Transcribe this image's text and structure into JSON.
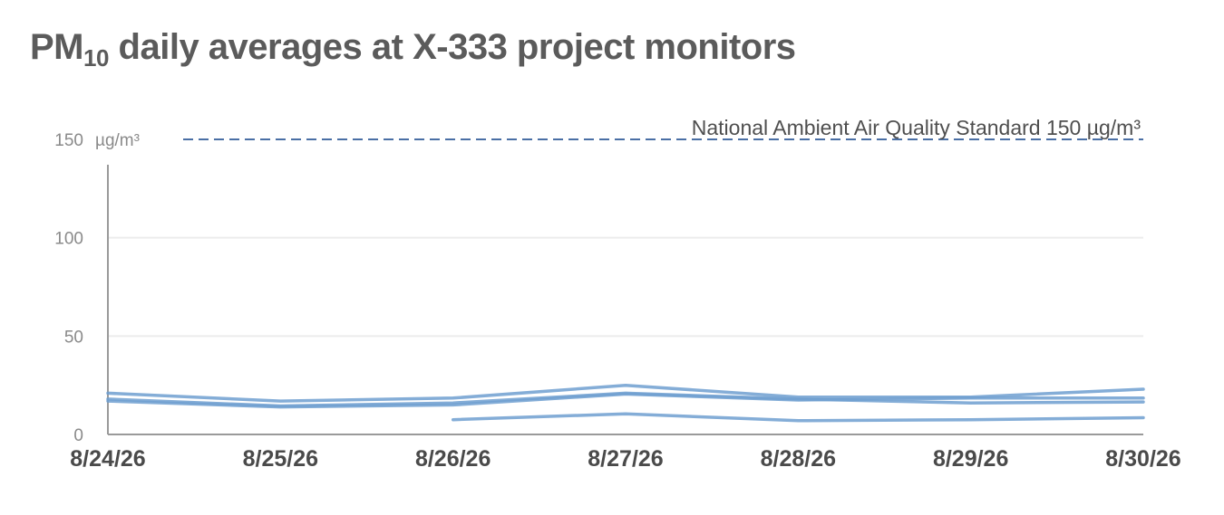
{
  "title": {
    "main": "PM",
    "subscript": "10",
    "rest": " daily averages at X-333 project monitors"
  },
  "chart_data": {
    "type": "line",
    "title": "PM10 daily averages at X-333 project monitors",
    "xlabel": "",
    "ylabel": "",
    "y_unit": "µg/m³",
    "ylim": [
      0,
      150
    ],
    "y_ticks": [
      0,
      50,
      100,
      150
    ],
    "categories": [
      "8/24/26",
      "8/25/26",
      "8/26/26",
      "8/27/26",
      "8/28/26",
      "8/29/26",
      "8/30/26"
    ],
    "series": [
      {
        "values": [
          21,
          17,
          18.5,
          25,
          19,
          19,
          23
        ]
      },
      {
        "values": [
          18,
          14.5,
          16,
          21,
          18,
          16,
          16.5
        ]
      },
      {
        "values": [
          17,
          14,
          15,
          20.5,
          17.5,
          18.5,
          18.5
        ]
      },
      {
        "values": [
          null,
          null,
          7.5,
          10.5,
          7,
          7.5,
          8.5
        ]
      }
    ],
    "reference_line": {
      "value": 150,
      "label": "National Ambient Air Quality Standard 150 µg/m³",
      "style": "dashed"
    },
    "grid": true,
    "legend": "none",
    "colors": {
      "series": "#6f9fd0",
      "reference": "#4a6fa5",
      "grid": "#ececec",
      "axis": "#9a9a9a"
    }
  }
}
